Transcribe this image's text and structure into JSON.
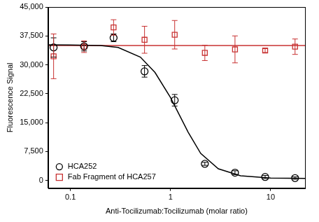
{
  "chart_data": {
    "type": "scatter",
    "x_label": "Anti-Tocilizumab:Tocilizumab (molar ratio)",
    "y_label": "Fluorescence Signal",
    "log": "x",
    "grid": false,
    "legend": "lower left",
    "xlim": [
      0.06,
      22
    ],
    "xticks": [
      0.1,
      1,
      10
    ],
    "ylim": [
      -2000,
      45000
    ],
    "yticks": [
      0,
      {
        "value": 7500,
        "label": "7,500"
      },
      {
        "value": 15000,
        "label": "15,000"
      },
      {
        "value": 22500,
        "label": "22,500"
      },
      {
        "value": 30000,
        "label": "30,000"
      },
      {
        "value": 37500,
        "label": "37,500"
      },
      {
        "value": 45000,
        "label": "45,000"
      }
    ],
    "series": [
      {
        "name": "HCA252",
        "color": "#000000",
        "marker": "circle",
        "line_style": "solid",
        "x": [
          0.068,
          0.137,
          0.27,
          0.55,
          1.1,
          2.2,
          4.4,
          8.8,
          17.5
        ],
        "values": [
          34500,
          34800,
          37000,
          28300,
          20800,
          4300,
          2000,
          900,
          600
        ],
        "errors": [
          2500,
          1200,
          1000,
          1500,
          1500,
          400,
          500,
          400,
          300
        ],
        "fit": {
          "x": [
            0.06,
            0.1,
            0.2,
            0.3,
            0.5,
            0.7,
            1,
            1.5,
            2,
            3,
            5,
            10,
            22
          ],
          "values": [
            35200,
            35150,
            35000,
            34500,
            32000,
            28000,
            21500,
            12500,
            7000,
            3000,
            1200,
            600,
            500
          ]
        }
      },
      {
        "name": "Fab Fragment of HCA257",
        "color": "#c83232",
        "marker": "square",
        "line_style": "solid",
        "x": [
          0.068,
          0.137,
          0.27,
          0.55,
          1.1,
          2.2,
          4.4,
          8.8,
          17.5
        ],
        "values": [
          32200,
          34700,
          39700,
          36500,
          37800,
          33100,
          34000,
          33700,
          34700
        ],
        "errors": [
          5800,
          1500,
          2000,
          3500,
          3700,
          2000,
          3500,
          500,
          2000
        ],
        "fit": {
          "x": [
            0.06,
            22
          ],
          "values": [
            35000,
            35000
          ]
        }
      }
    ]
  }
}
